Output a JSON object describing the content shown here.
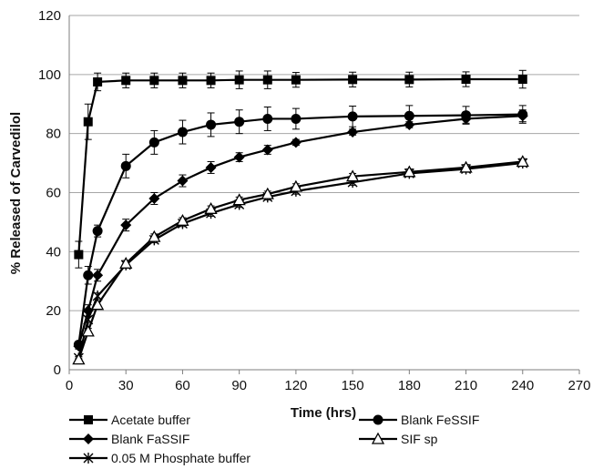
{
  "chart_data": {
    "type": "line",
    "xlabel": "Time (hrs)",
    "ylabel": "% Released of Carvedilol",
    "xlim": [
      0,
      270
    ],
    "ylim": [
      0,
      120
    ],
    "xticks": [
      0,
      30,
      60,
      90,
      120,
      150,
      180,
      210,
      240,
      270
    ],
    "yticks": [
      0,
      20,
      40,
      60,
      80,
      100,
      120
    ],
    "grid": "horizontal",
    "legend_position": "bottom",
    "series": [
      {
        "name": "Acetate buffer",
        "marker": "square",
        "x": [
          5,
          10,
          15,
          30,
          45,
          60,
          75,
          90,
          105,
          120,
          150,
          180,
          210,
          240
        ],
        "y": [
          39,
          84,
          97.5,
          98,
          98,
          98,
          98,
          98.2,
          98.2,
          98.2,
          98.3,
          98.3,
          98.4,
          98.4
        ],
        "err": [
          4.5,
          6,
          3,
          2.5,
          2.5,
          2.5,
          2.5,
          3,
          3,
          2.5,
          2.5,
          2.5,
          2.5,
          3
        ]
      },
      {
        "name": "Blank FeSSIF",
        "marker": "circle",
        "x": [
          5,
          10,
          15,
          30,
          45,
          60,
          75,
          90,
          105,
          120,
          150,
          180,
          210,
          240
        ],
        "y": [
          8.5,
          32,
          47,
          69,
          77,
          80.5,
          83,
          84,
          85,
          85,
          85.8,
          86,
          86.2,
          86.5
        ],
        "err": [
          1,
          3,
          2,
          4,
          4,
          4,
          4,
          4,
          4,
          3.5,
          3.5,
          3.5,
          3,
          3
        ]
      },
      {
        "name": "Blank FaSSIF",
        "marker": "diamond",
        "x": [
          5,
          10,
          15,
          30,
          45,
          60,
          75,
          90,
          105,
          120,
          150,
          180,
          210,
          240
        ],
        "y": [
          8,
          20,
          32,
          49,
          58,
          64,
          68.5,
          72,
          74.5,
          77,
          80.5,
          83,
          85,
          86
        ],
        "err": [
          1,
          2,
          2,
          2,
          2,
          2,
          2,
          1.5,
          1.5,
          1,
          1,
          1,
          1.5,
          2
        ]
      },
      {
        "name": "SIF sp",
        "marker": "triangle",
        "x": [
          5,
          10,
          15,
          30,
          45,
          60,
          75,
          90,
          105,
          120,
          150,
          180,
          210,
          240
        ],
        "y": [
          3.5,
          13,
          22,
          36,
          45,
          50.5,
          54.5,
          57.5,
          59.5,
          62,
          65.5,
          67,
          68.5,
          70.5
        ],
        "err": [
          0.5,
          1,
          1,
          1,
          1,
          1,
          1,
          1,
          1,
          1,
          1,
          1,
          1,
          1
        ]
      },
      {
        "name": "0.05 M Phosphate buffer",
        "marker": "asterisk",
        "x": [
          5,
          10,
          15,
          30,
          45,
          60,
          75,
          90,
          105,
          120,
          150,
          180,
          210,
          240
        ],
        "y": [
          4,
          17,
          25,
          35.5,
          44,
          49.5,
          53,
          56,
          58.5,
          60.5,
          63.5,
          66.5,
          68,
          70
        ],
        "err": [
          0.5,
          1,
          1,
          1,
          1,
          1,
          1,
          1,
          1,
          1,
          1,
          1,
          1,
          1
        ]
      }
    ]
  }
}
